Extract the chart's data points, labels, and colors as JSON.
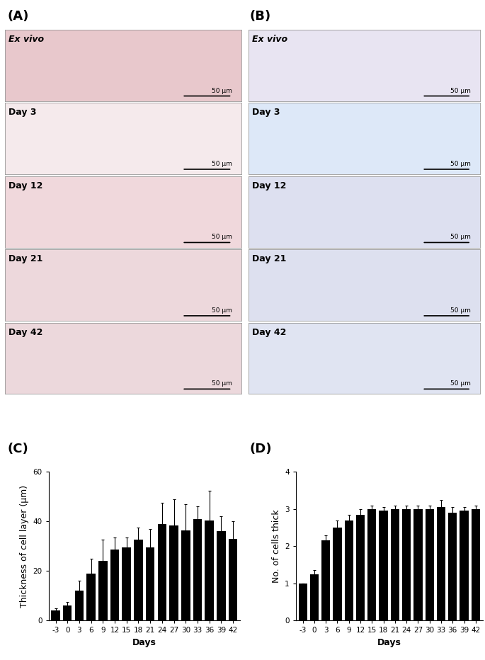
{
  "panel_labels_top": [
    "(A)",
    "(B)"
  ],
  "panel_labels_bot": [
    "(C)",
    "(D)"
  ],
  "row_labels": [
    "Ex vivo",
    "Day 3",
    "Day 12",
    "Day 21",
    "Day 42"
  ],
  "row_label_style": [
    "italic",
    "normal",
    "normal",
    "normal",
    "normal"
  ],
  "row_label_weight": [
    "bold",
    "bold",
    "bold",
    "bold",
    "bold"
  ],
  "col_A_bg": [
    "#e8c8cc",
    "#f5eaec",
    "#f0d8dc",
    "#edd8dc",
    "#ecd8dc"
  ],
  "col_B_bg": [
    "#e8e4f2",
    "#dde8f8",
    "#dde0f0",
    "#dde0ef",
    "#e0e4f2"
  ],
  "C_days": [
    -3,
    0,
    3,
    6,
    9,
    12,
    15,
    18,
    21,
    24,
    27,
    30,
    33,
    36,
    39,
    42
  ],
  "C_values": [
    4.0,
    6.0,
    12.0,
    19.0,
    24.0,
    28.5,
    29.5,
    32.5,
    29.5,
    39.0,
    38.5,
    36.5,
    41.0,
    40.5,
    36.0,
    33.0
  ],
  "C_errors": [
    1.0,
    1.5,
    4.0,
    6.0,
    8.5,
    5.0,
    4.0,
    5.0,
    7.5,
    8.5,
    10.5,
    10.5,
    5.0,
    12.0,
    6.0,
    7.0
  ],
  "C_ylabel": "Thickness of cell layer (µm)",
  "C_xlabel": "Days",
  "C_ylim": [
    0,
    60
  ],
  "C_yticks": [
    0,
    20,
    40,
    60
  ],
  "D_days": [
    -3,
    0,
    3,
    6,
    9,
    12,
    15,
    18,
    21,
    24,
    27,
    30,
    33,
    36,
    39,
    42
  ],
  "D_values": [
    1.0,
    1.25,
    2.15,
    2.5,
    2.7,
    2.85,
    3.0,
    2.95,
    3.0,
    3.0,
    3.0,
    3.0,
    3.05,
    2.9,
    2.95,
    3.0
  ],
  "D_errors": [
    0.0,
    0.1,
    0.15,
    0.2,
    0.15,
    0.15,
    0.1,
    0.1,
    0.1,
    0.1,
    0.1,
    0.1,
    0.2,
    0.15,
    0.1,
    0.1
  ],
  "D_ylabel": "No. of cells thick",
  "D_xlabel": "Days",
  "D_ylim": [
    0,
    4
  ],
  "D_yticks": [
    0,
    1,
    2,
    3,
    4
  ],
  "bar_color": "#000000",
  "bg_color": "#ffffff",
  "font_size_tick": 7.5,
  "font_size_panel_label": 13,
  "font_size_row_label": 9,
  "font_size_axis_label": 9,
  "scale_bar_text": "50 µm"
}
